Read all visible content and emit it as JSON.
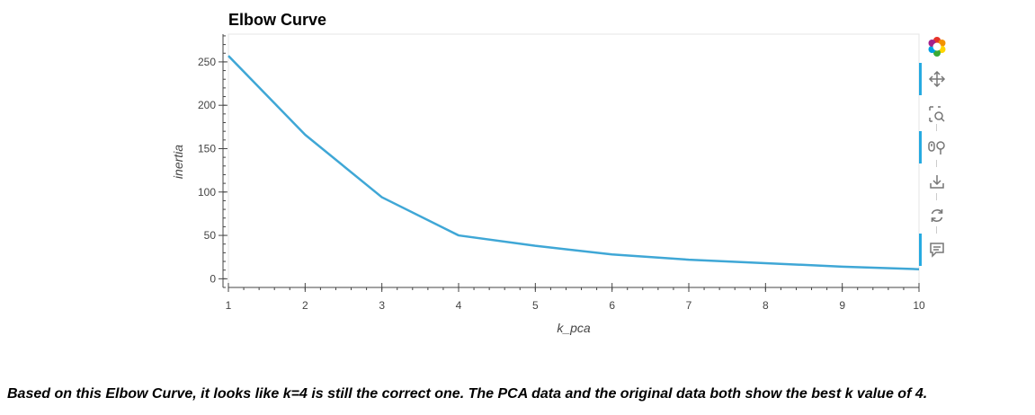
{
  "chart_data": {
    "type": "line",
    "title": "Elbow Curve",
    "xlabel": "k_pca",
    "ylabel": "inertia",
    "x": [
      1,
      2,
      3,
      4,
      5,
      6,
      7,
      8,
      9,
      10
    ],
    "series": [
      {
        "values": [
          257,
          166,
          94,
          50,
          38,
          28,
          22,
          18,
          14,
          11
        ],
        "color": "#3fa7d6"
      }
    ],
    "xlim": [
      1,
      10
    ],
    "ylim": [
      -10,
      282
    ],
    "xticks": [
      1,
      2,
      3,
      4,
      5,
      6,
      7,
      8,
      9,
      10
    ],
    "yticks": [
      0,
      50,
      100,
      150,
      200,
      250
    ],
    "grid": false,
    "legend": "none"
  },
  "toolbar": {
    "tools": [
      {
        "name": "bokeh-logo-icon",
        "active": false
      },
      {
        "name": "pan-icon",
        "active": true
      },
      {
        "name": "box-zoom-icon",
        "active": false
      },
      {
        "name": "wheel-zoom-icon",
        "active": true
      },
      {
        "name": "save-icon",
        "active": false
      },
      {
        "name": "reset-icon",
        "active": false
      },
      {
        "name": "hover-icon",
        "active": true
      }
    ]
  },
  "note": {
    "text": "Based on this Elbow Curve, it looks like k=4 is still the correct one. The PCA data and the original data both show the best k value of 4."
  }
}
